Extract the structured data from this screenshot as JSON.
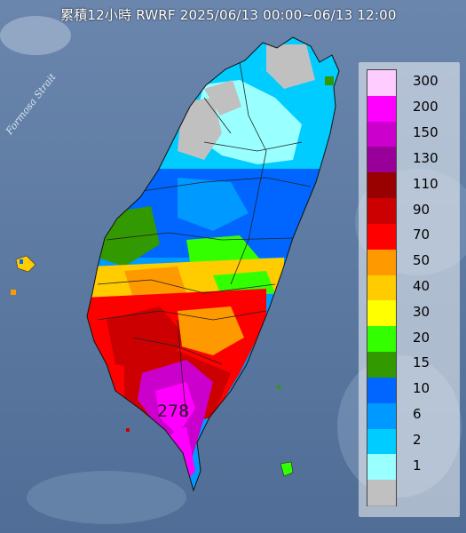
{
  "title": "累積12小時 RWRF 2025/06/13 00:00~06/13 12:00",
  "strait_label": "Formosa Strait",
  "max_value": "278",
  "legend": {
    "levels": [
      {
        "label": "300",
        "color": "#ffccff"
      },
      {
        "label": "200",
        "color": "#ff00ff"
      },
      {
        "label": "150",
        "color": "#cc00cc"
      },
      {
        "label": "130",
        "color": "#990099"
      },
      {
        "label": "110",
        "color": "#990000"
      },
      {
        "label": "90",
        "color": "#cc0000"
      },
      {
        "label": "70",
        "color": "#ff0000"
      },
      {
        "label": "50",
        "color": "#ff9900"
      },
      {
        "label": "40",
        "color": "#ffcc00"
      },
      {
        "label": "30",
        "color": "#ffff00"
      },
      {
        "label": "20",
        "color": "#33ff00"
      },
      {
        "label": "15",
        "color": "#339900"
      },
      {
        "label": "10",
        "color": "#0066ff"
      },
      {
        "label": "6",
        "color": "#0099ff"
      },
      {
        "label": "2",
        "color": "#00ccff"
      },
      {
        "label": "1",
        "color": "#99ffff"
      },
      {
        "label": "",
        "color": "#c0c0c0"
      }
    ]
  }
}
